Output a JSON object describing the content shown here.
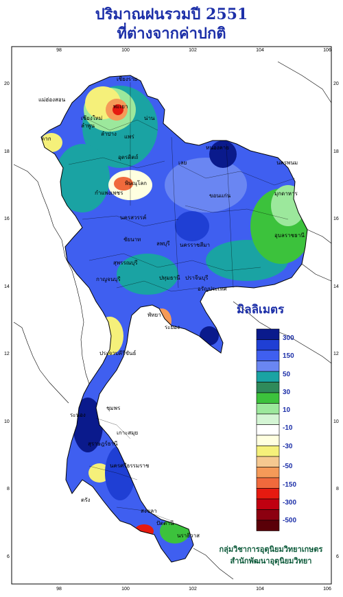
{
  "title": {
    "line1": "ปริมาณฝนรวมปี  2551",
    "line2": "ที่ต่างจากค่าปกติ"
  },
  "axes": {
    "lon_ticks": [
      "98",
      "100",
      "102",
      "104",
      "106"
    ],
    "lat_ticks": [
      "20",
      "18",
      "16",
      "14",
      "12",
      "10",
      "8",
      "6"
    ]
  },
  "legend": {
    "title": "มิลลิเมตร",
    "colors": [
      "#0a1a8c",
      "#1f3fd4",
      "#3f5ff0",
      "#6a86f2",
      "#1aa3a3",
      "#2f8a5a",
      "#3cc23c",
      "#9ce89c",
      "#d4f5d4",
      "#ffffff",
      "#ffffe0",
      "#f5f07a",
      "#f5c890",
      "#f59a58",
      "#f06a3c",
      "#e61a10",
      "#c00010",
      "#8c0010",
      "#5a0008"
    ],
    "labels": [
      "300",
      "150",
      "50",
      "30",
      "10",
      "-10",
      "-30",
      "-50",
      "-150",
      "-300",
      "-500"
    ]
  },
  "provinces": [
    "เชียงราย",
    "แม่ฮ่องสอน",
    "พะเยา",
    "เชียงใหม่",
    "ลำพูน",
    "น่าน",
    "แพร่",
    "ลำปาง",
    "ตาก",
    "อุตรดิตถ์",
    "พิษณุโลก",
    "หนองคาย",
    "นครพนม",
    "เลย",
    "ขอนแก่น",
    "มุกดาหาร",
    "อุบลราชธานี",
    "นครราชสีมา",
    "กำแพงเพชร",
    "นครสวรรค์",
    "ลพบุรี",
    "ชัยนาท",
    "สุพรรณบุรี",
    "กาญจนบุรี",
    "ปทุมธานี",
    "ปราจีนบุรี",
    "อรัญประเทศ",
    "พัทยา",
    "ระยอง",
    "ประจวบคีรีขันธ์",
    "ชุมพร",
    "ระนอง",
    "เกาะสมุย",
    "สุราษฎร์ธานี",
    "นครศรีธรรมราช",
    "ตรัง",
    "สงขลา",
    "ปัตตานี",
    "นราธิวาส"
  ],
  "credit": {
    "line1": "กลุ่มวิชาการอุตุนิยมวิทยาเกษตร",
    "line2": "สำนักพัฒนาอุตุนิยมวิทยา"
  }
}
